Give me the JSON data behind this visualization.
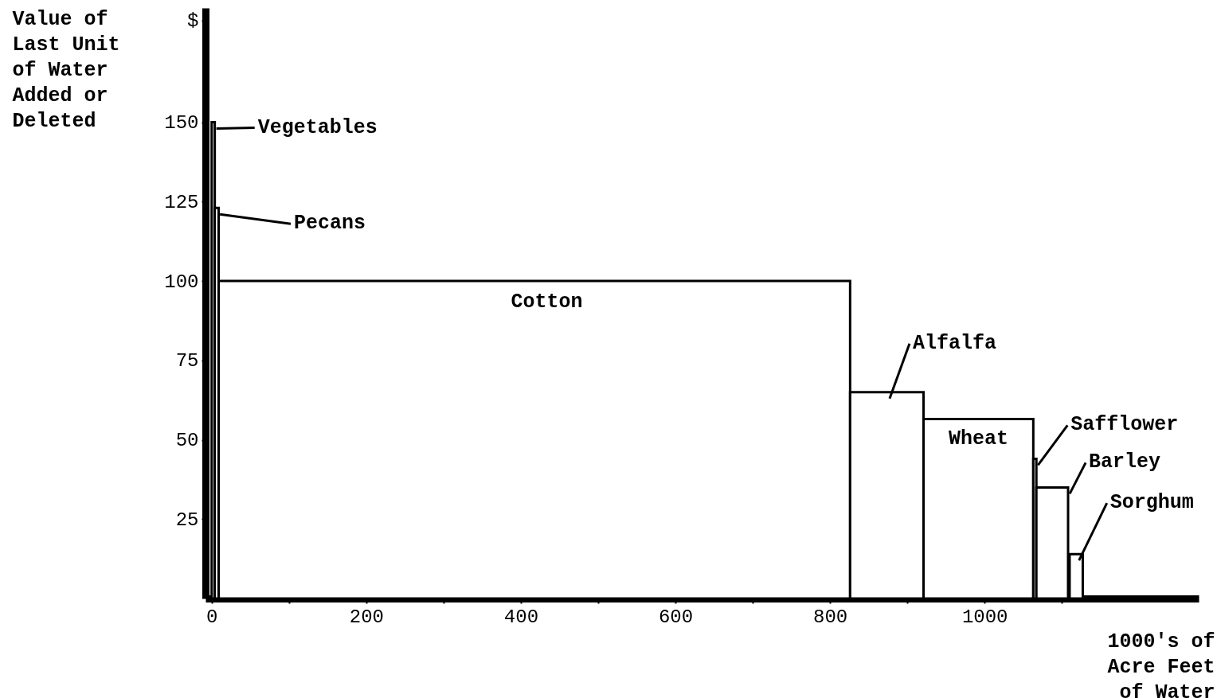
{
  "chart_data": {
    "type": "histogram",
    "xlabel": "1000's of Acre Feet of Water",
    "ylabel": "Value of Last Unit of Water Added or Deleted",
    "bins": [
      0,
      4,
      9,
      826,
      921,
      1063,
      1067,
      1108,
      1110,
      1127
    ],
    "values": [
      150,
      123,
      100,
      65,
      56.5,
      44,
      35,
      0,
      14
    ],
    "color": "#000000",
    "xlim": [
      -8,
      1277
    ],
    "ylim": [
      0,
      186
    ],
    "xticks": [
      0,
      {
        "value": 100,
        "label": null
      },
      200,
      {
        "value": 300,
        "label": null
      },
      400,
      {
        "value": 500,
        "label": null
      },
      600,
      {
        "value": 700,
        "label": null
      },
      800,
      {
        "value": 900,
        "label": null
      },
      1000,
      {
        "value": 1100,
        "label": null
      }
    ],
    "yticks": [
      25,
      50,
      75,
      100,
      125,
      150,
      {
        "value": 182,
        "label": "$"
      }
    ],
    "grid": false,
    "annotations": [
      {
        "text": "Vegetables",
        "x": 2,
        "y": 150
      },
      {
        "text": "Pecans",
        "x": 6.5,
        "y": 123
      },
      {
        "text": "Cotton",
        "x": 418,
        "y": 100
      },
      {
        "text": "Alfalfa",
        "x": 873,
        "y": 65
      },
      {
        "text": "Wheat",
        "x": 992,
        "y": 56.5
      },
      {
        "text": "Safflower",
        "x": 1065,
        "y": 44
      },
      {
        "text": "Barley",
        "x": 1106,
        "y": 35
      },
      {
        "text": "Sorghum",
        "x": 1118,
        "y": 14
      }
    ]
  }
}
